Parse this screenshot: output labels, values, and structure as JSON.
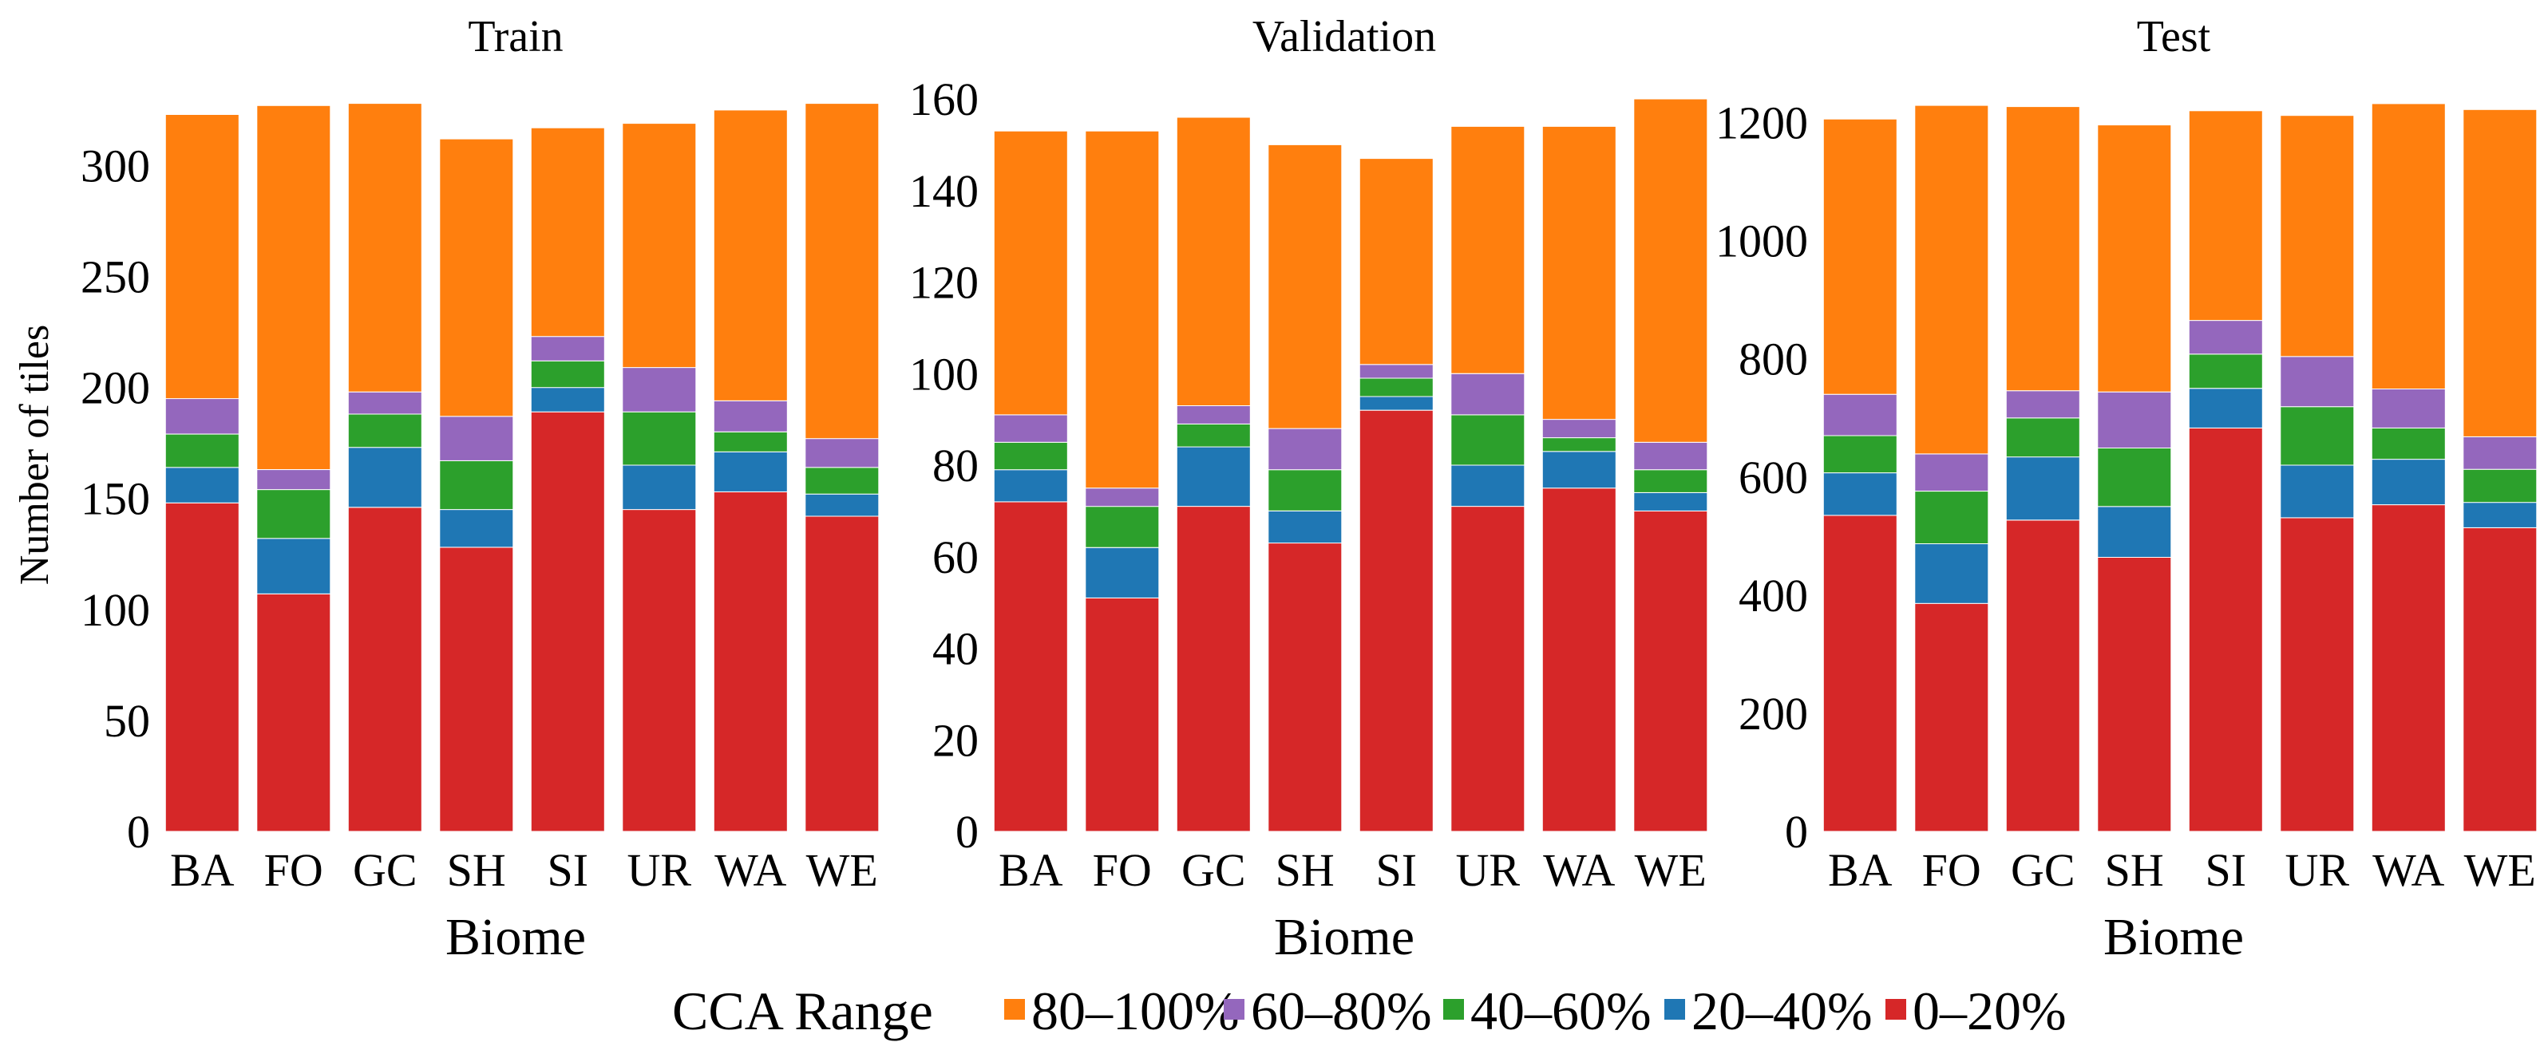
{
  "figure": {
    "ylabel_shared": "Number of tiles",
    "legend_title": "CCA Range",
    "legend_placement": "bottom-center"
  },
  "chart_data": [
    {
      "type": "bar",
      "stacked": true,
      "title": "Train",
      "xlabel": "Biome",
      "ylabel": "Number of tiles",
      "categories": [
        "BA",
        "FO",
        "GC",
        "SH",
        "SI",
        "UR",
        "WA",
        "WE"
      ],
      "ylim": [
        0,
        330
      ],
      "yticks": [
        0,
        50,
        100,
        150,
        200,
        250,
        300
      ],
      "grid": false,
      "series": [
        {
          "name": "0–20%",
          "color": "#d62728",
          "values": [
            148,
            107,
            146,
            128,
            189,
            145,
            153,
            142
          ]
        },
        {
          "name": "20–40%",
          "color": "#1f77b4",
          "values": [
            16,
            25,
            27,
            17,
            11,
            20,
            18,
            10
          ]
        },
        {
          "name": "40–60%",
          "color": "#2ca02c",
          "values": [
            15,
            22,
            15,
            22,
            12,
            24,
            9,
            12
          ]
        },
        {
          "name": "60–80%",
          "color": "#9467bd",
          "values": [
            16,
            9,
            10,
            20,
            11,
            20,
            14,
            13
          ]
        },
        {
          "name": "80–100%",
          "color": "#ff7f0e",
          "values": [
            128,
            164,
            130,
            125,
            94,
            110,
            131,
            151
          ]
        }
      ]
    },
    {
      "type": "bar",
      "stacked": true,
      "title": "Validation",
      "xlabel": "Biome",
      "ylabel": "",
      "categories": [
        "BA",
        "FO",
        "GC",
        "SH",
        "SI",
        "UR",
        "WA",
        "WE"
      ],
      "ylim": [
        0,
        160
      ],
      "yticks": [
        0,
        20,
        40,
        60,
        80,
        100,
        120,
        140,
        160
      ],
      "grid": false,
      "series": [
        {
          "name": "0–20%",
          "color": "#d62728",
          "values": [
            72,
            51,
            71,
            63,
            92,
            71,
            75,
            70
          ]
        },
        {
          "name": "20–40%",
          "color": "#1f77b4",
          "values": [
            7,
            11,
            13,
            7,
            3,
            9,
            8,
            4
          ]
        },
        {
          "name": "40–60%",
          "color": "#2ca02c",
          "values": [
            6,
            9,
            5,
            9,
            4,
            11,
            3,
            5
          ]
        },
        {
          "name": "60–80%",
          "color": "#9467bd",
          "values": [
            6,
            4,
            4,
            9,
            3,
            9,
            4,
            6
          ]
        },
        {
          "name": "80–100%",
          "color": "#ff7f0e",
          "values": [
            62,
            78,
            63,
            62,
            45,
            54,
            64,
            75
          ]
        }
      ]
    },
    {
      "type": "bar",
      "stacked": true,
      "title": "Test",
      "xlabel": "Biome",
      "ylabel": "",
      "categories": [
        "BA",
        "FO",
        "GC",
        "SH",
        "SI",
        "UR",
        "WA",
        "WE"
      ],
      "ylim": [
        0,
        1240
      ],
      "yticks": [
        0,
        200,
        400,
        600,
        800,
        1000,
        1200
      ],
      "grid": false,
      "series": [
        {
          "name": "0–20%",
          "color": "#d62728",
          "values": [
            535,
            386,
            527,
            464,
            683,
            531,
            553,
            514
          ]
        },
        {
          "name": "20–40%",
          "color": "#1f77b4",
          "values": [
            72,
            101,
            107,
            86,
            67,
            89,
            77,
            43
          ]
        },
        {
          "name": "40–60%",
          "color": "#2ca02c",
          "values": [
            63,
            89,
            66,
            99,
            58,
            99,
            53,
            56
          ]
        },
        {
          "name": "60–80%",
          "color": "#9467bd",
          "values": [
            70,
            63,
            46,
            95,
            57,
            85,
            66,
            55
          ]
        },
        {
          "name": "80–100%",
          "color": "#ff7f0e",
          "values": [
            466,
            590,
            481,
            452,
            355,
            408,
            483,
            554
          ]
        }
      ]
    }
  ]
}
